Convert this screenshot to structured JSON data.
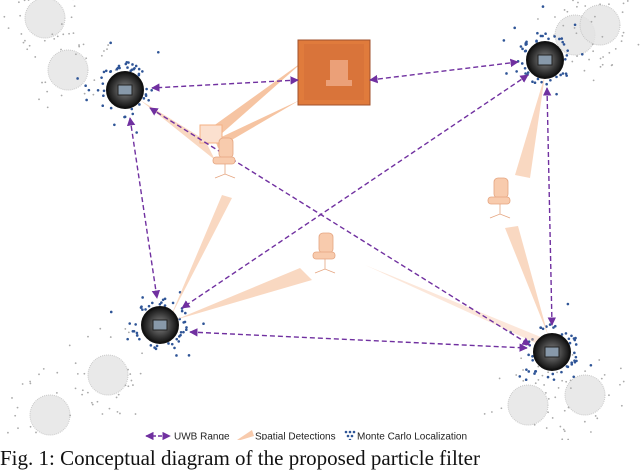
{
  "legend": [
    "UWB Range",
    "Spatial Detections",
    "Monte Carlo Localization"
  ],
  "caption": "Fig. 1: Conceptual diagram of the proposed particle filter"
}
